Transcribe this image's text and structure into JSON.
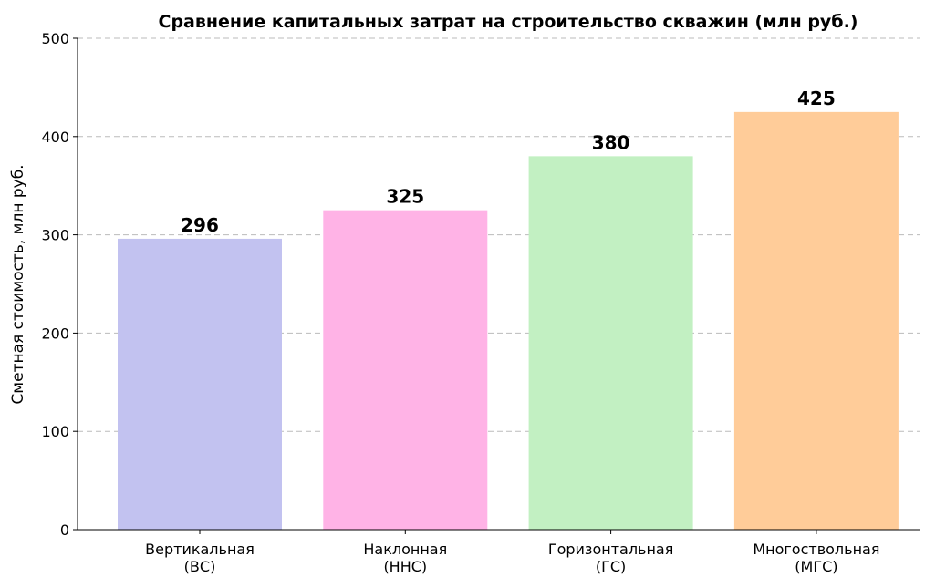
{
  "chart_data": {
    "type": "bar",
    "title": "Сравнение капитальных затрат на строительство скважин (млн руб.)",
    "y_label": "Сметная стоимость, млн руб.",
    "categories": [
      "Вертикальная\n(ВС)",
      "Наклонная\n(ННС)",
      "Горизонтальная\n(ГС)",
      "Многоствольная\n(МГС)"
    ],
    "values": [
      296,
      325,
      380,
      425
    ],
    "colors": [
      "#c2c2f0",
      "#ffb3e6",
      "#c2f0c2",
      "#ffcc99"
    ],
    "ylim": [
      0,
      500
    ],
    "yticks": [
      0,
      100,
      200,
      300,
      400,
      500
    ],
    "grid": true
  }
}
